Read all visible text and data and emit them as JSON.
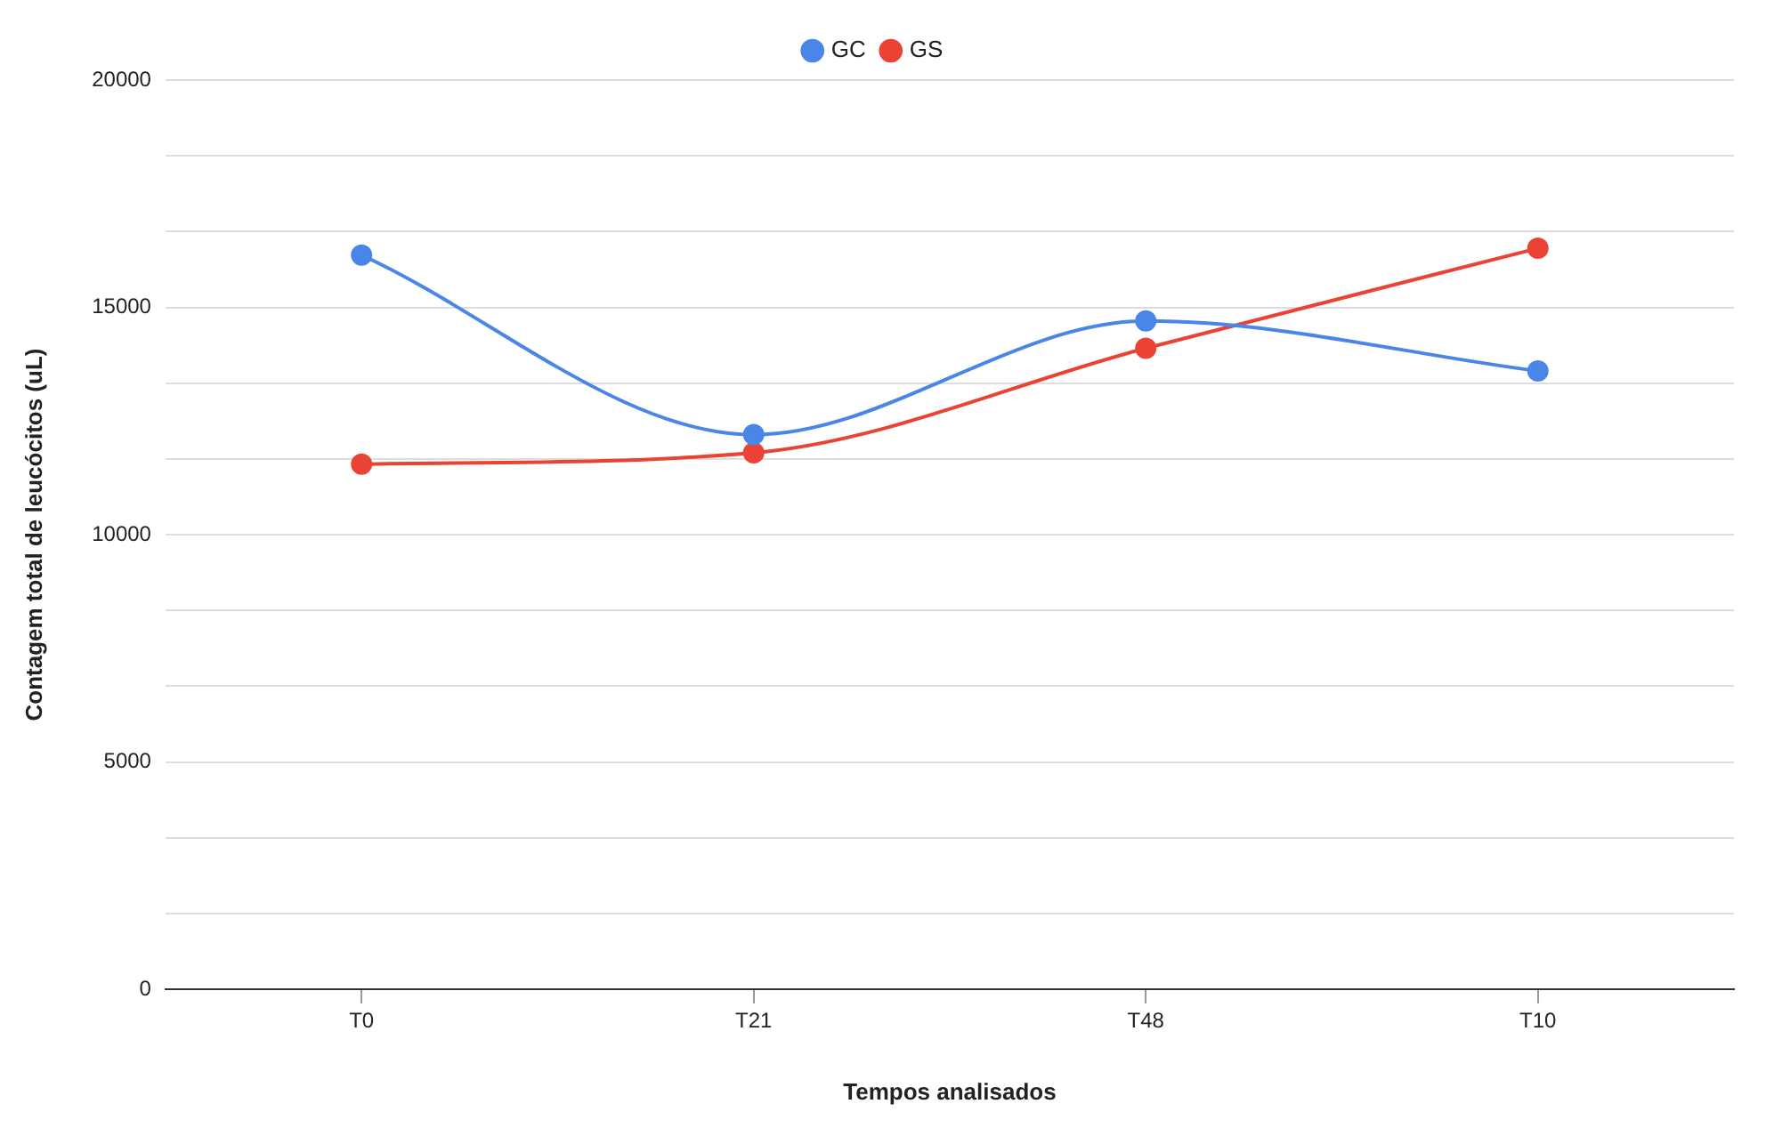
{
  "chart_data": {
    "type": "line",
    "xlabel": "Tempos analisados",
    "ylabel": "Contagem total de leucócitos (uL)",
    "categories": [
      "T0",
      "T21",
      "T48",
      "T10"
    ],
    "series": [
      {
        "name": "GC",
        "color": "#4a86e8",
        "values": [
          16150,
          12200,
          14700,
          13600
        ]
      },
      {
        "name": "GS",
        "color": "#ea4335",
        "values": [
          11550,
          11800,
          14100,
          16300
        ]
      }
    ],
    "ylim": [
      0,
      20000
    ],
    "yticks": [
      0,
      {
        "value": 1666.67,
        "label": null
      },
      {
        "value": 3333.33,
        "label": null
      },
      5000,
      {
        "value": 6666.67,
        "label": null
      },
      {
        "value": 8333.33,
        "label": null
      },
      10000,
      {
        "value": 11666.67,
        "label": null
      },
      {
        "value": 13333.33,
        "label": null
      },
      15000,
      {
        "value": 16666.67,
        "label": null
      },
      {
        "value": 18333.33,
        "label": null
      },
      20000
    ],
    "grid": "y",
    "legend": "top",
    "marker": "circle",
    "line_style": "solid"
  }
}
